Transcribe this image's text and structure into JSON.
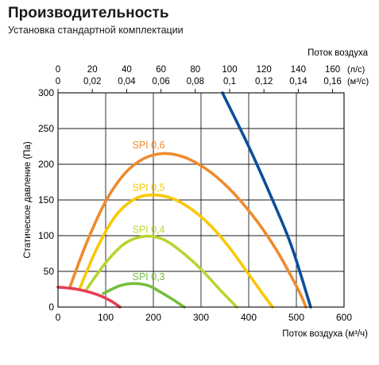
{
  "header": {
    "title": "Производительность",
    "subtitle": "Установка стандартной комплектации"
  },
  "chart_data": {
    "type": "line",
    "title": "Производительность",
    "subtitle": "Установка стандартной комплектации",
    "xlabel": "Поток воздуха (м³/ч)",
    "ylabel": "Статическое давление (Па)",
    "xlim": [
      0,
      600
    ],
    "ylim": [
      0,
      300
    ],
    "x_ticks": [
      0,
      100,
      200,
      300,
      400,
      500,
      600
    ],
    "y_ticks": [
      0,
      50,
      100,
      150,
      200,
      250,
      300
    ],
    "grid": true,
    "secondary_axes": {
      "title": "Поток воздуха",
      "ls_unit": "(л/с)",
      "m3s_unit": "(м³/с)",
      "ls_ticks": [
        0,
        20,
        40,
        60,
        80,
        100,
        120,
        140,
        160
      ],
      "m3s_ticks": [
        "0",
        "0,02",
        "0,04",
        "0,06",
        "0,08",
        "0,1",
        "0,12",
        "0,14",
        "0,16"
      ]
    },
    "series": [
      {
        "name": "SPI 0,6",
        "color": "#ef8a2e",
        "label_at": [
          190,
          222
        ],
        "x": [
          25,
          60,
          100,
          140,
          180,
          220,
          260,
          300,
          340,
          380,
          420,
          460,
          490,
          510,
          520
        ],
        "y": [
          28,
          90,
          148,
          187,
          208,
          215,
          211,
          198,
          178,
          151,
          118,
          78,
          42,
          16,
          0
        ]
      },
      {
        "name": "SPI 0,5",
        "color": "#f9c800",
        "label_at": [
          190,
          163
        ],
        "x": [
          45,
          80,
          120,
          160,
          200,
          240,
          280,
          320,
          360,
          400,
          430,
          450
        ],
        "y": [
          25,
          80,
          127,
          151,
          157,
          152,
          137,
          114,
          83,
          46,
          18,
          0
        ]
      },
      {
        "name": "SPI 0,4",
        "color": "#b9d531",
        "label_at": [
          190,
          104
        ],
        "x": [
          60,
          100,
          140,
          180,
          220,
          260,
          300,
          340,
          375
        ],
        "y": [
          25,
          62,
          89,
          99,
          95,
          77,
          53,
          24,
          0
        ]
      },
      {
        "name": "SPI 0,3",
        "color": "#76bf3c",
        "label_at": [
          190,
          38
        ],
        "x": [
          95,
          130,
          160,
          190,
          215,
          240,
          265
        ],
        "y": [
          19,
          30,
          33,
          30,
          21,
          11,
          0
        ]
      },
      {
        "name": "",
        "color": "#e83e52",
        "x": [
          0,
          40,
          80,
          110,
          130
        ],
        "y": [
          28,
          25,
          18,
          9,
          0
        ]
      },
      {
        "name": "",
        "color": "#0d4e9a",
        "x": [
          345,
          400,
          450,
          490,
          530
        ],
        "y": [
          300,
          225,
          150,
          85,
          0
        ]
      }
    ]
  }
}
